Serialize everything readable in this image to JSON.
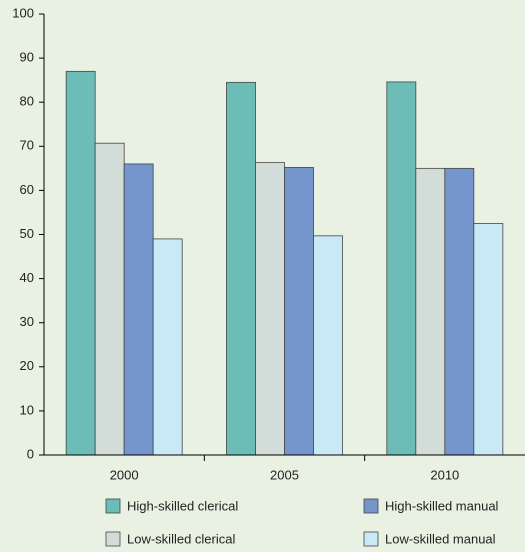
{
  "chart_data": {
    "type": "bar",
    "categories": [
      "2000",
      "2005",
      "2010"
    ],
    "series": [
      {
        "name": "High-skilled clerical",
        "color": "#6cbdb7",
        "values": [
          87,
          84.5,
          84.6
        ]
      },
      {
        "name": "Low-skilled clerical",
        "color": "#d2ddd9",
        "values": [
          70.7,
          66.3,
          65
        ]
      },
      {
        "name": "High-skilled manual",
        "color": "#7595cd",
        "values": [
          66,
          65.2,
          65
        ]
      },
      {
        "name": "Low-skilled manual",
        "color": "#c9e9f6",
        "values": [
          49,
          49.7,
          52.5
        ]
      }
    ],
    "ylim": [
      0,
      100
    ],
    "yticks": [
      0,
      10,
      20,
      30,
      40,
      50,
      60,
      70,
      80,
      90,
      100
    ],
    "grid": false
  }
}
